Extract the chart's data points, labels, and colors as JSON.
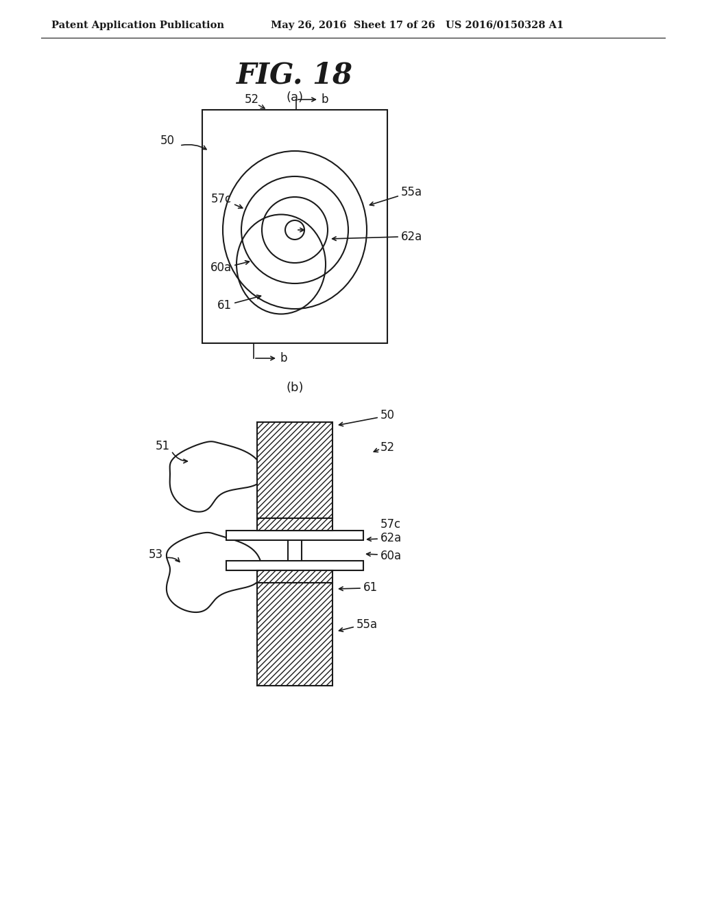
{
  "header_left": "Patent Application Publication",
  "header_mid": "May 26, 2016  Sheet 17 of 26",
  "header_right": "US 2016/0150328 A1",
  "fig_title": "FIG. 18",
  "bg_color": "#ffffff",
  "line_color": "#1a1a1a"
}
